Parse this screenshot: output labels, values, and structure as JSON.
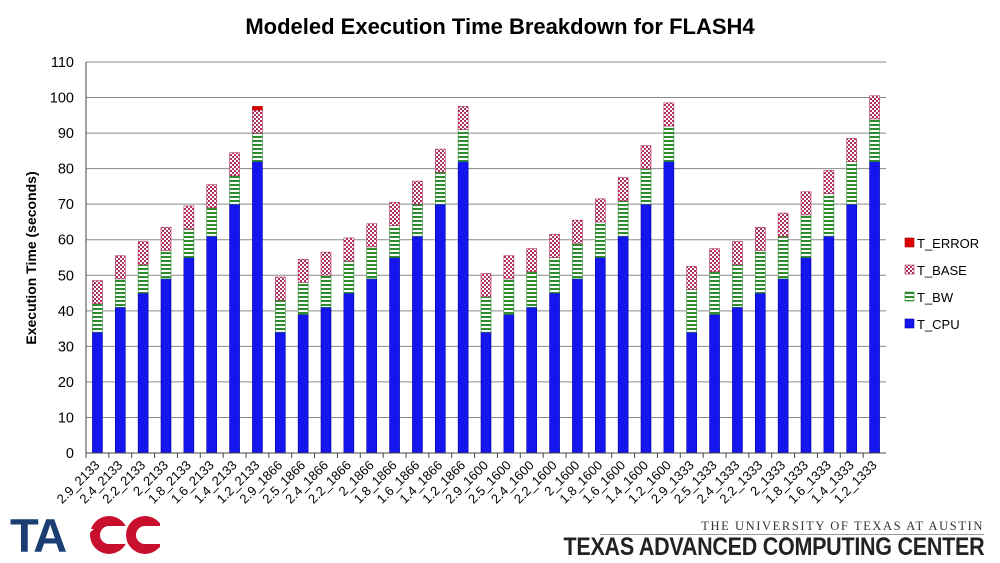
{
  "chart_data": {
    "type": "bar",
    "stacked": true,
    "title": "Modeled Execution Time Breakdown for FLASH4",
    "xlabel": "",
    "ylabel": "Execution Time (seconds)",
    "ylim": [
      0,
      110
    ],
    "yticks": [
      0,
      10,
      20,
      30,
      40,
      50,
      60,
      70,
      80,
      90,
      100,
      110
    ],
    "grid": true,
    "legend_position": "right",
    "categories": [
      "2.9_2133",
      "2.4_2133",
      "2.2_2133",
      "2_2133",
      "1.8_2133",
      "1.6_2133",
      "1.4_2133",
      "1.2_2133",
      "2.9_1866",
      "2.5_1866",
      "2.4_1866",
      "2.2_1866",
      "2_1866",
      "1.8_1866",
      "1.6_1866",
      "1.4_1866",
      "1.2_1866",
      "2.9_1600",
      "2.5_1600",
      "2.4_1600",
      "2.2_1600",
      "2_1600",
      "1.8_1600",
      "1.6_1600",
      "1.4_1600",
      "1.2_1600",
      "2.9_1333",
      "2.5_1333",
      "2.4_1333",
      "2.2_1333",
      "2_1333",
      "1.8_1333",
      "1.6_1333",
      "1.4_1333",
      "1.2_1333"
    ],
    "series": [
      {
        "name": "T_CPU",
        "color": "#1515ee",
        "values": [
          34,
          41,
          45,
          49,
          55,
          61,
          70,
          82,
          34,
          39,
          41,
          45,
          49,
          55,
          61,
          70,
          82,
          34,
          39,
          41,
          45,
          49,
          55,
          61,
          70,
          82,
          34,
          39,
          41,
          45,
          49,
          55,
          61,
          70,
          82
        ]
      },
      {
        "name": "T_BW",
        "color": "#2e8b2e",
        "values": [
          8,
          8,
          8,
          8,
          8,
          8,
          8,
          8,
          9,
          9,
          9,
          9,
          9,
          9,
          9,
          9,
          9,
          10,
          10,
          10,
          10,
          10,
          10,
          10,
          10,
          10,
          12,
          12,
          12,
          12,
          12,
          12,
          12,
          12,
          12
        ]
      },
      {
        "name": "T_BASE",
        "color": "#b03060",
        "values": [
          6.5,
          6.5,
          6.5,
          6.5,
          6.5,
          6.5,
          6.5,
          6.5,
          6.5,
          6.5,
          6.5,
          6.5,
          6.5,
          6.5,
          6.5,
          6.5,
          6.5,
          6.5,
          6.5,
          6.5,
          6.5,
          6.5,
          6.5,
          6.5,
          6.5,
          6.5,
          6.5,
          6.5,
          6.5,
          6.5,
          6.5,
          6.5,
          6.5,
          6.5,
          6.5
        ]
      },
      {
        "name": "T_ERROR",
        "color": "#dd0000",
        "values": [
          0,
          0,
          0,
          0,
          0,
          0,
          0,
          1,
          0,
          0,
          0,
          0,
          0,
          0,
          0,
          0,
          0,
          0,
          0,
          0,
          0,
          0,
          0,
          0,
          0,
          0,
          0,
          0,
          0,
          0,
          0,
          0,
          0,
          0,
          0
        ]
      }
    ],
    "legend_order": [
      "T_ERROR",
      "T_BASE",
      "T_BW",
      "T_CPU"
    ]
  },
  "footer": {
    "logo_text": "TACC",
    "university": "THE UNIVERSITY OF TEXAS AT AUSTIN",
    "center": "TEXAS ADVANCED COMPUTING CENTER"
  }
}
